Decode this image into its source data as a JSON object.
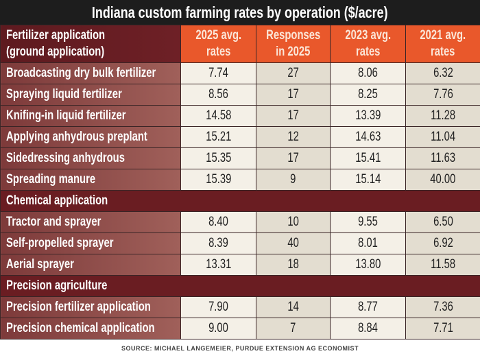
{
  "title": "Indiana custom farming rates by operation ($/acre)",
  "chart_data": {
    "type": "table",
    "title": "Indiana custom farming rates by operation ($/acre)",
    "columns": [
      "2025 avg. rates",
      "Responses in 2025",
      "2023 avg. rates",
      "2021 avg. rates"
    ],
    "header": {
      "first_line1": "Fertilizer application",
      "first_line2": "(ground application)",
      "cols": [
        {
          "l1": "2025 avg.",
          "l2": "rates"
        },
        {
          "l1": "Responses",
          "l2": "in 2025"
        },
        {
          "l1": "2023 avg.",
          "l2": "rates"
        },
        {
          "l1": "2021 avg.",
          "l2": "rates"
        }
      ]
    },
    "rows": [
      {
        "label": "Broadcasting dry bulk fertilizer",
        "values": [
          "7.74",
          "27",
          "8.06",
          "6.32"
        ]
      },
      {
        "label": "Spraying liquid fertilizer",
        "values": [
          "8.56",
          "17",
          "8.25",
          "7.76"
        ]
      },
      {
        "label": "Knifing-in liquid fertilizer",
        "values": [
          "14.58",
          "17",
          "13.39",
          "11.28"
        ]
      },
      {
        "label": "Applying anhydrous preplant",
        "values": [
          "15.21",
          "12",
          "14.63",
          "11.04"
        ]
      },
      {
        "label": "Sidedressing anhydrous",
        "values": [
          "15.35",
          "17",
          "15.41",
          "11.63"
        ]
      },
      {
        "label": "Spreading manure",
        "values": [
          "15.39",
          "9",
          "15.14",
          "40.00"
        ]
      },
      {
        "section": "Chemical application"
      },
      {
        "label": "Tractor and sprayer",
        "values": [
          "8.40",
          "10",
          "9.55",
          "6.50"
        ]
      },
      {
        "label": "Self-propelled sprayer",
        "values": [
          "8.39",
          "40",
          "8.01",
          "6.92"
        ]
      },
      {
        "label": "Aerial sprayer",
        "values": [
          "13.31",
          "18",
          "13.80",
          "11.58"
        ]
      },
      {
        "section": "Precision agriculture"
      },
      {
        "label": "Precision fertilizer application",
        "values": [
          "7.90",
          "14",
          "8.77",
          "7.36"
        ]
      },
      {
        "label": "Precision chemical application",
        "values": [
          "9.00",
          "7",
          "8.84",
          "7.71"
        ]
      }
    ]
  },
  "source": "SOURCE: MICHAEL LANGEMEIER, PURDUE EXTENSION AG ECONOMIST",
  "colors": {
    "title_bg": "#1d1d1d",
    "header_orange": "#e9582b",
    "maroon": "#6a1d22",
    "label_cell": "#8a4a48"
  }
}
